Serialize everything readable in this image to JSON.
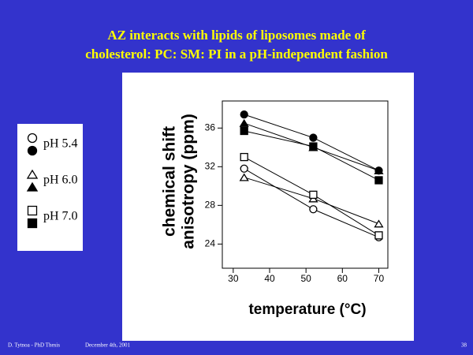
{
  "chart_data": {
    "type": "line",
    "title": [
      "AZ interacts with lipids of  liposomes made of",
      "cholesterol: PC: SM: PI in a pH-independent fashion"
    ],
    "y_label": [
      "chemical shift",
      "anisotropy (ppm)"
    ],
    "x_label": "temperature (°C)",
    "x": [
      33,
      52,
      70
    ],
    "xlim": [
      27,
      72.5
    ],
    "xticks": [
      30,
      40,
      50,
      60,
      70
    ],
    "ylim": [
      21.5,
      38.8
    ],
    "yticks": [
      24,
      28,
      32,
      36
    ],
    "color": "#000000",
    "series": [
      {
        "name": "pH 5.4",
        "marker": "circle",
        "filled": [
          37.4,
          35.0,
          31.6
        ],
        "open": [
          31.8,
          27.6,
          24.7
        ]
      },
      {
        "name": "pH 6.0",
        "marker": "triangle",
        "filled": [
          36.5,
          34.0,
          31.6
        ],
        "open": [
          30.9,
          28.7,
          26.1
        ]
      },
      {
        "name": "pH 7.0",
        "marker": "square",
        "filled": [
          35.7,
          34.1,
          30.6
        ],
        "open": [
          33.0,
          29.1,
          24.9
        ]
      }
    ],
    "footer": [
      "D. Tytnoa - PhD Thesis",
      "December 4th, 2001",
      "38"
    ]
  }
}
